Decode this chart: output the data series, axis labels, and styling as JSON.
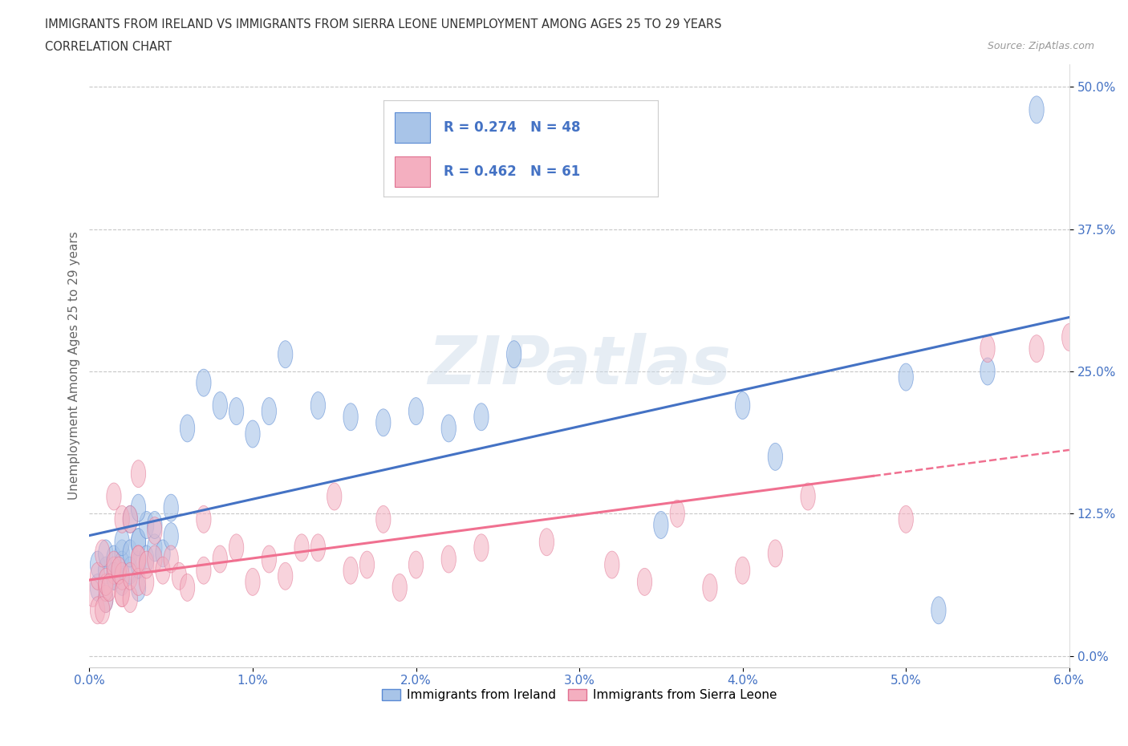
{
  "title_line1": "IMMIGRANTS FROM IRELAND VS IMMIGRANTS FROM SIERRA LEONE UNEMPLOYMENT AMONG AGES 25 TO 29 YEARS",
  "title_line2": "CORRELATION CHART",
  "source_text": "Source: ZipAtlas.com",
  "ylabel": "Unemployment Among Ages 25 to 29 years",
  "xlim": [
    0.0,
    0.06
  ],
  "ylim": [
    -0.01,
    0.52
  ],
  "xticks": [
    0.0,
    0.01,
    0.02,
    0.03,
    0.04,
    0.05,
    0.06
  ],
  "xticklabels": [
    "0.0%",
    "1.0%",
    "2.0%",
    "3.0%",
    "4.0%",
    "5.0%",
    "6.0%"
  ],
  "yticks": [
    0.0,
    0.125,
    0.25,
    0.375,
    0.5
  ],
  "yticklabels": [
    "0.0%",
    "12.5%",
    "25.0%",
    "37.5%",
    "50.0%"
  ],
  "ireland_color": "#a8c4e8",
  "ireland_edge_color": "#5a8ad4",
  "sierra_leone_color": "#f4afc0",
  "sierra_leone_edge_color": "#e07090",
  "ireland_line_color": "#4472c4",
  "sierra_leone_line_color": "#f07090",
  "ireland_R": 0.274,
  "ireland_N": 48,
  "sierra_leone_R": 0.462,
  "sierra_leone_N": 61,
  "grid_color": "#c8c8c8",
  "background_color": "#ffffff",
  "watermark_text": "ZIPatlas",
  "tick_color": "#4472c4",
  "ireland_scatter_x": [
    0.0005,
    0.001,
    0.0005,
    0.001,
    0.0015,
    0.001,
    0.0015,
    0.002,
    0.002,
    0.0015,
    0.002,
    0.0025,
    0.003,
    0.002,
    0.0025,
    0.003,
    0.003,
    0.0025,
    0.003,
    0.0035,
    0.003,
    0.0035,
    0.004,
    0.0045,
    0.004,
    0.005,
    0.005,
    0.006,
    0.007,
    0.008,
    0.009,
    0.01,
    0.011,
    0.012,
    0.014,
    0.016,
    0.018,
    0.02,
    0.022,
    0.024,
    0.026,
    0.035,
    0.04,
    0.042,
    0.05,
    0.052,
    0.055,
    0.058
  ],
  "ireland_scatter_y": [
    0.06,
    0.05,
    0.08,
    0.075,
    0.07,
    0.09,
    0.085,
    0.065,
    0.09,
    0.07,
    0.08,
    0.075,
    0.06,
    0.1,
    0.09,
    0.08,
    0.1,
    0.12,
    0.1,
    0.115,
    0.13,
    0.085,
    0.095,
    0.09,
    0.115,
    0.105,
    0.13,
    0.2,
    0.24,
    0.22,
    0.215,
    0.195,
    0.215,
    0.265,
    0.22,
    0.21,
    0.205,
    0.215,
    0.2,
    0.21,
    0.265,
    0.115,
    0.22,
    0.175,
    0.245,
    0.04,
    0.25,
    0.48
  ],
  "sierra_leone_scatter_x": [
    0.0002,
    0.0005,
    0.001,
    0.0005,
    0.001,
    0.0008,
    0.0015,
    0.001,
    0.002,
    0.0015,
    0.002,
    0.0008,
    0.0012,
    0.0018,
    0.002,
    0.0025,
    0.0015,
    0.002,
    0.003,
    0.0025,
    0.003,
    0.003,
    0.0035,
    0.0025,
    0.0035,
    0.003,
    0.004,
    0.004,
    0.0045,
    0.005,
    0.0055,
    0.006,
    0.007,
    0.007,
    0.008,
    0.009,
    0.01,
    0.011,
    0.012,
    0.013,
    0.014,
    0.015,
    0.016,
    0.017,
    0.018,
    0.019,
    0.02,
    0.022,
    0.024,
    0.028,
    0.032,
    0.034,
    0.036,
    0.038,
    0.04,
    0.042,
    0.044,
    0.05,
    0.055,
    0.058,
    0.06
  ],
  "sierra_leone_scatter_y": [
    0.055,
    0.04,
    0.05,
    0.07,
    0.06,
    0.09,
    0.075,
    0.065,
    0.055,
    0.08,
    0.07,
    0.04,
    0.06,
    0.075,
    0.055,
    0.05,
    0.14,
    0.12,
    0.085,
    0.07,
    0.065,
    0.085,
    0.065,
    0.12,
    0.08,
    0.16,
    0.085,
    0.11,
    0.075,
    0.085,
    0.07,
    0.06,
    0.075,
    0.12,
    0.085,
    0.095,
    0.065,
    0.085,
    0.07,
    0.095,
    0.095,
    0.14,
    0.075,
    0.08,
    0.12,
    0.06,
    0.08,
    0.085,
    0.095,
    0.1,
    0.08,
    0.065,
    0.125,
    0.06,
    0.075,
    0.09,
    0.14,
    0.12,
    0.27,
    0.27,
    0.28
  ]
}
